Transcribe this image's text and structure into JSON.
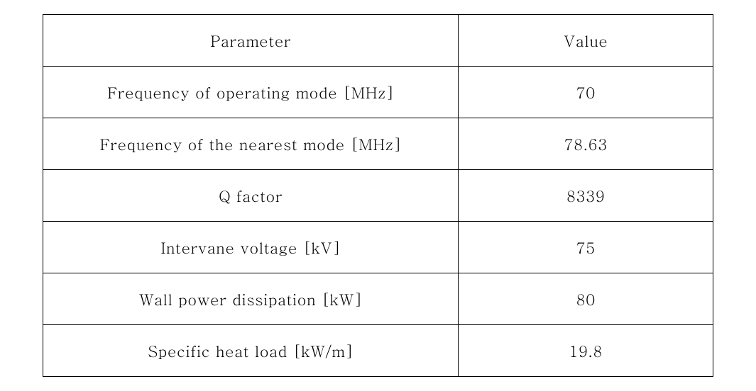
{
  "table": {
    "type": "table",
    "border_color": "#000000",
    "background_color": "#ffffff",
    "text_color": "#000000",
    "font_family": "Batang, serif",
    "font_size_pt": 16,
    "columns": [
      {
        "header": "Parameter",
        "width_pct": 62,
        "align": "center"
      },
      {
        "header": "Value",
        "width_pct": 38,
        "align": "center"
      }
    ],
    "rows": [
      {
        "parameter": "Frequency of operating mode [MHz]",
        "value": "70"
      },
      {
        "parameter": "Frequency of the nearest mode [MHz]",
        "value": "78.63"
      },
      {
        "parameter": "Q factor",
        "value": "8339"
      },
      {
        "parameter": "Intervane voltage [kV]",
        "value": "75"
      },
      {
        "parameter": "Wall power dissipation [kW]",
        "value": "80"
      },
      {
        "parameter": "Specific heat load [kW/m]",
        "value": "19.8"
      }
    ]
  }
}
